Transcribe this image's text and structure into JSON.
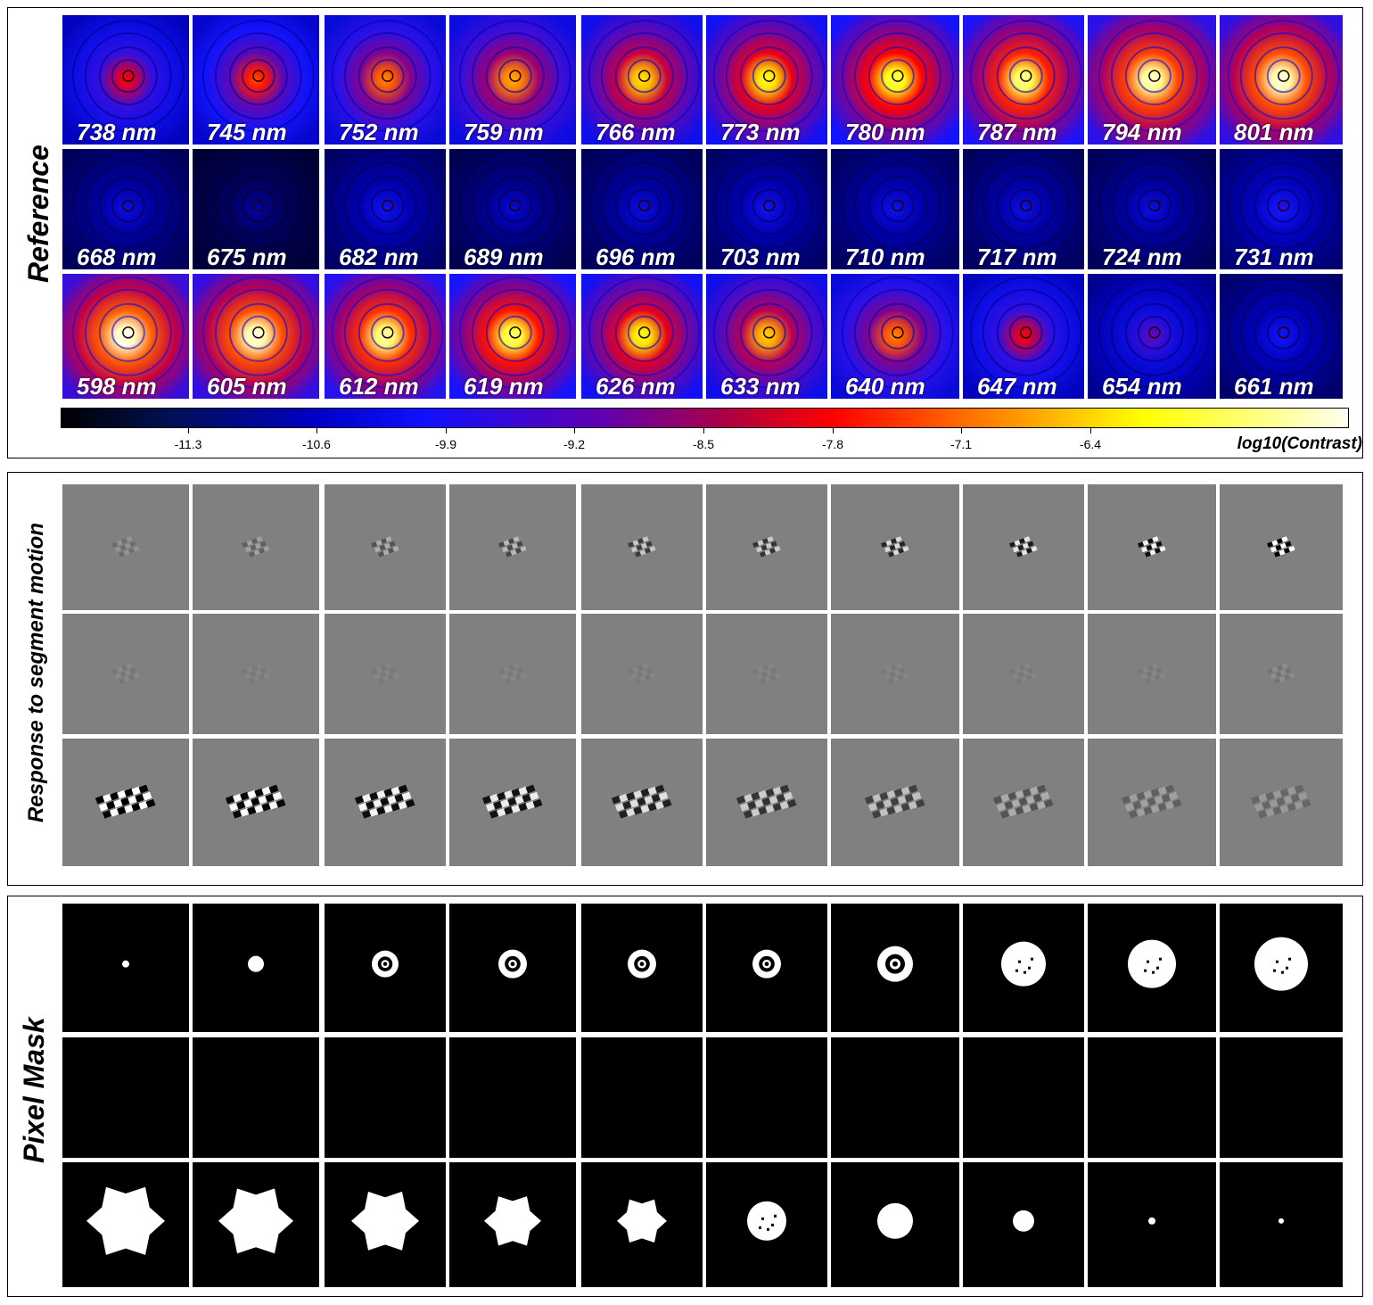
{
  "panels": {
    "reference": {
      "label": "Reference",
      "rows": [
        [
          "738 nm",
          "745 nm",
          "752 nm",
          "759 nm",
          "766 nm",
          "773 nm",
          "780 nm",
          "787 nm",
          "794 nm",
          "801 nm"
        ],
        [
          "668 nm",
          "675 nm",
          "682 nm",
          "689 nm",
          "696 nm",
          "703 nm",
          "710 nm",
          "717 nm",
          "724 nm",
          "731 nm"
        ],
        [
          "598 nm",
          "605 nm",
          "612 nm",
          "619 nm",
          "626 nm",
          "633 nm",
          "640 nm",
          "647 nm",
          "654 nm",
          "661 nm"
        ]
      ],
      "colorbar": {
        "ticks": [
          "-11.3",
          "-10.6",
          "-9.9",
          "-9.2",
          "-8.5",
          "-7.8",
          "-7.1",
          "-6.4"
        ],
        "label": "log10(Contrast)",
        "colormap": [
          "#000000",
          "#0000c8",
          "#1010ff",
          "#b00040",
          "#ff0000",
          "#ff8000",
          "#ffff00",
          "#fffff0"
        ]
      }
    },
    "response": {
      "label": "Response to segment motion"
    },
    "mask": {
      "label": "Pixel Mask"
    }
  }
}
